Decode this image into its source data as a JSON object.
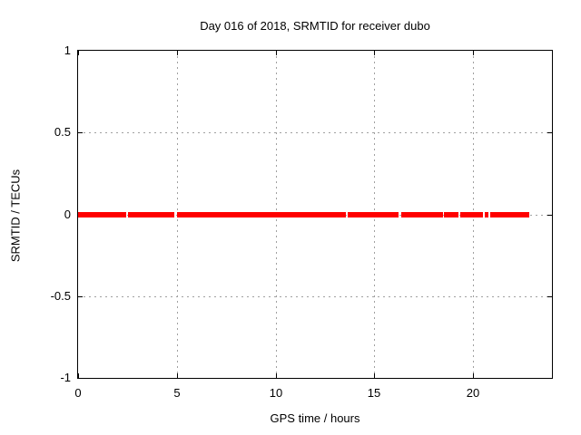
{
  "chart_data": {
    "type": "line",
    "title": "Day 016 of 2018, SRMTID for receiver dubo",
    "xlabel": "GPS time / hours",
    "ylabel": "SRMTID / TECUs",
    "xlim": [
      0,
      24
    ],
    "ylim": [
      -1,
      1
    ],
    "xticks": [
      {
        "value": 0,
        "label": "0"
      },
      {
        "value": 5,
        "label": "5"
      },
      {
        "value": 10,
        "label": "10"
      },
      {
        "value": 15,
        "label": "15"
      },
      {
        "value": 20,
        "label": "20"
      }
    ],
    "yticks": [
      {
        "value": 1,
        "label": "1"
      },
      {
        "value": 0.5,
        "label": "0.5"
      },
      {
        "value": 0,
        "label": "0"
      },
      {
        "value": -0.5,
        "label": "-0.5"
      },
      {
        "value": -1,
        "label": "-1"
      }
    ],
    "grid": true,
    "legend": "none",
    "series": [
      {
        "name": "SRMTID",
        "color": "#ff0000",
        "y_value": 0,
        "style": "thick horizontal line segments with small gaps",
        "segments_hours": [
          [
            0,
            2.43
          ],
          [
            2.52,
            4.86
          ],
          [
            4.99,
            13.56
          ],
          [
            13.65,
            16.21
          ],
          [
            16.35,
            18.46
          ],
          [
            18.55,
            19.28
          ],
          [
            19.37,
            20.52
          ],
          [
            20.61,
            20.79
          ],
          [
            20.88,
            22.86
          ]
        ]
      }
    ],
    "colors": {
      "frame": "#000000",
      "grid": "#a0a0a0",
      "text": "#000000",
      "background": "#ffffff"
    }
  }
}
